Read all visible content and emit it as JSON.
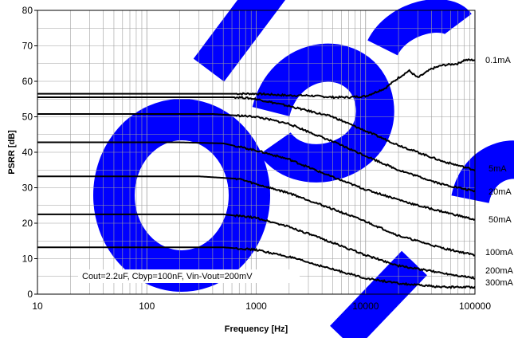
{
  "chart_data": {
    "type": "line",
    "xlabel": "Frequency [Hz]",
    "ylabel": "PSRR [dB]",
    "xscale": "log",
    "xlim": [
      10,
      100000
    ],
    "ylim": [
      0,
      80
    ],
    "x_ticks": [
      "10",
      "100",
      "1000",
      "10000",
      "100000"
    ],
    "y_ticks": [
      "0",
      "10",
      "20",
      "30",
      "40",
      "50",
      "60",
      "70",
      "80"
    ],
    "grid": true,
    "annotation": "Cout=2.2uF, Cbyp=100nF, Vin-Vout=200mV",
    "series": [
      {
        "name": "0.1mA",
        "points": [
          [
            10,
            56.5
          ],
          [
            1000,
            56.5
          ],
          [
            2000,
            56
          ],
          [
            3000,
            56
          ],
          [
            5000,
            55.5
          ],
          [
            7000,
            55.5
          ],
          [
            10000,
            55.8
          ],
          [
            15000,
            58
          ],
          [
            20000,
            61
          ],
          [
            25000,
            63
          ],
          [
            30000,
            61
          ],
          [
            40000,
            63.5
          ],
          [
            50000,
            64.5
          ],
          [
            70000,
            65
          ],
          [
            80000,
            66
          ],
          [
            100000,
            66
          ]
        ]
      },
      {
        "name": "5mA",
        "points": [
          [
            10,
            55.5
          ],
          [
            700,
            55.5
          ],
          [
            1000,
            55
          ],
          [
            2000,
            53
          ],
          [
            5000,
            50
          ],
          [
            10000,
            46
          ],
          [
            20000,
            42
          ],
          [
            50000,
            37.5
          ],
          [
            100000,
            35
          ]
        ]
      },
      {
        "name": "20mA",
        "points": [
          [
            10,
            50.8
          ],
          [
            400,
            50.8
          ],
          [
            1000,
            50
          ],
          [
            2000,
            48
          ],
          [
            5000,
            43
          ],
          [
            10000,
            39
          ],
          [
            20000,
            35
          ],
          [
            50000,
            31
          ],
          [
            100000,
            29
          ]
        ]
      },
      {
        "name": "50mA",
        "points": [
          [
            10,
            42.8
          ],
          [
            200,
            42.8
          ],
          [
            500,
            42.5
          ],
          [
            1000,
            40.5
          ],
          [
            2000,
            38
          ],
          [
            5000,
            33
          ],
          [
            10000,
            29.5
          ],
          [
            30000,
            25
          ],
          [
            100000,
            21
          ]
        ]
      },
      {
        "name": "100mA",
        "points": [
          [
            10,
            33.2
          ],
          [
            300,
            33.2
          ],
          [
            700,
            32.5
          ],
          [
            1000,
            31
          ],
          [
            2000,
            28.5
          ],
          [
            5000,
            24
          ],
          [
            10000,
            20.5
          ],
          [
            20000,
            16.5
          ],
          [
            50000,
            13
          ],
          [
            100000,
            11
          ]
        ]
      },
      {
        "name": "200mA",
        "points": [
          [
            10,
            22.5
          ],
          [
            500,
            22.5
          ],
          [
            1000,
            21.5
          ],
          [
            2000,
            19
          ],
          [
            5000,
            14.5
          ],
          [
            10000,
            11
          ],
          [
            20000,
            8
          ],
          [
            50000,
            6
          ],
          [
            100000,
            4.5
          ]
        ]
      },
      {
        "name": "300mA",
        "points": [
          [
            10,
            13.2
          ],
          [
            500,
            13.2
          ],
          [
            1000,
            12.5
          ],
          [
            2000,
            10.5
          ],
          [
            5000,
            7
          ],
          [
            10000,
            4.5
          ],
          [
            20000,
            3
          ],
          [
            50000,
            2
          ],
          [
            100000,
            2
          ]
        ]
      }
    ]
  },
  "colors": {
    "line": "#000000",
    "grid": "#9e9e9e",
    "background": "#ffffff",
    "watermark": "#0000ff"
  }
}
